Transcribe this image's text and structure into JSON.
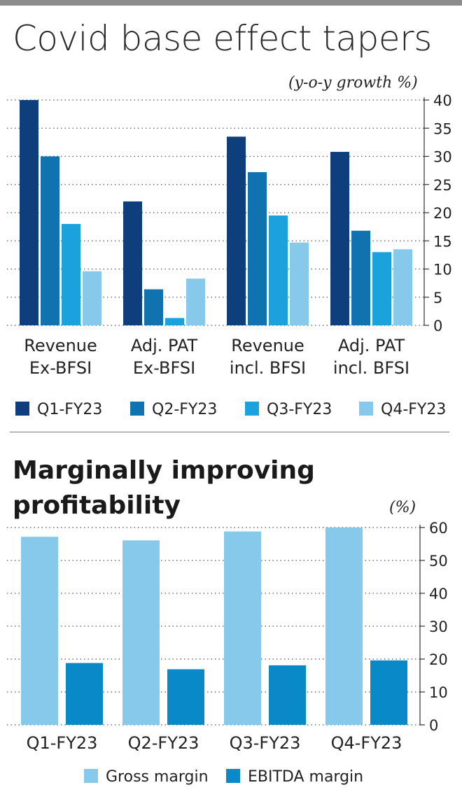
{
  "chart_data": [
    {
      "type": "bar",
      "title": "Covid base effect tapers",
      "unit_label": "(y-o-y growth %)",
      "categories": [
        "Revenue\nEx-BFSI",
        "Adj. PAT\nEx-BFSI",
        "Revenue\nincl. BFSI",
        "Adj. PAT\nincl. BFSI"
      ],
      "series": [
        {
          "name": "Q1-FY23",
          "values": [
            40,
            22,
            33.5,
            30.8
          ],
          "color": "#0f3e7c"
        },
        {
          "name": "Q2-FY23",
          "values": [
            30,
            6.4,
            27.2,
            16.8
          ],
          "color": "#1172b0"
        },
        {
          "name": "Q3-FY23",
          "values": [
            18,
            1.3,
            19.5,
            13
          ],
          "color": "#1ba1dc"
        },
        {
          "name": "Q4-FY23",
          "values": [
            9.6,
            8.3,
            14.7,
            13.5
          ],
          "color": "#87c9ea"
        }
      ],
      "ylim": [
        0,
        40
      ],
      "yticks": [
        0,
        5,
        10,
        15,
        20,
        25,
        30,
        35,
        40
      ],
      "grid": true,
      "axis_side": "right",
      "legend_position": "bottom"
    },
    {
      "type": "bar",
      "title": "Marginally improving profitability",
      "unit_label": "(%)",
      "categories": [
        "Q1-FY23",
        "Q2-FY23",
        "Q3-FY23",
        "Q4-FY23"
      ],
      "series": [
        {
          "name": "Gross margin",
          "values": [
            57.2,
            56.1,
            58.8,
            60
          ],
          "color": "#87c9ea"
        },
        {
          "name": "EBITDA margin",
          "values": [
            18.8,
            16.9,
            18.1,
            19.6
          ],
          "color": "#0a89c8"
        }
      ],
      "ylim": [
        0,
        60
      ],
      "yticks": [
        0,
        10,
        20,
        30,
        40,
        50,
        60
      ],
      "grid": true,
      "axis_side": "right",
      "legend_position": "bottom"
    }
  ]
}
